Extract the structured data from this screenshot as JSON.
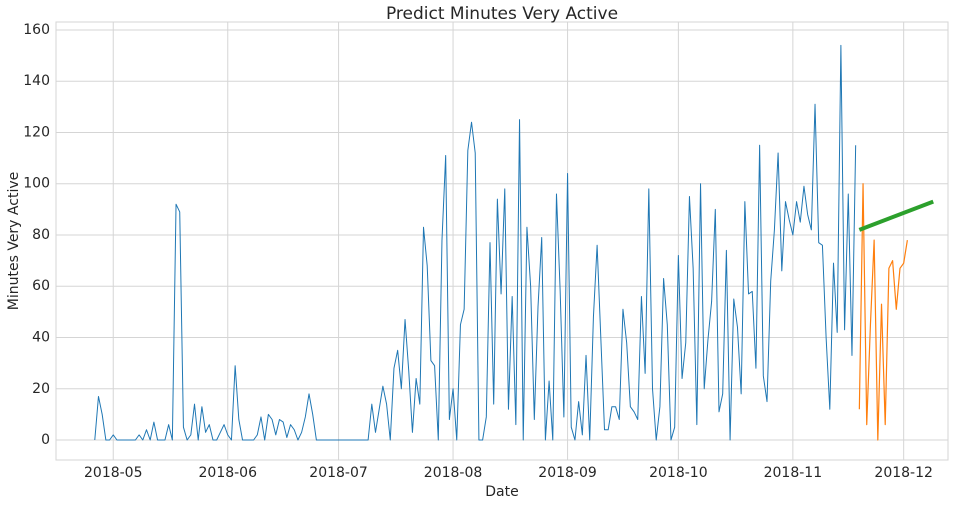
{
  "chart_data": {
    "type": "line",
    "title": "Predict Minutes Very Active",
    "x_label": "Date",
    "y_label": "Minutes Very Active",
    "grid": true,
    "xlim": [
      105.5,
      347
    ],
    "xticks": [
      {
        "value": 121,
        "label": "2018-05"
      },
      {
        "value": 152,
        "label": "2018-06"
      },
      {
        "value": 182,
        "label": "2018-07"
      },
      {
        "value": 213,
        "label": "2018-08"
      },
      {
        "value": 244,
        "label": "2018-09"
      },
      {
        "value": 274,
        "label": "2018-10"
      },
      {
        "value": 305,
        "label": "2018-11"
      },
      {
        "value": 335,
        "label": "2018-12"
      }
    ],
    "ylim": [
      -7.8,
      163.1
    ],
    "yticks": [
      0,
      20,
      40,
      60,
      80,
      100,
      120,
      140,
      160
    ],
    "series": [
      {
        "color": "#1f77b4",
        "width": 1,
        "x": [
          116,
          117,
          118,
          119,
          120,
          121,
          122,
          123,
          124,
          125,
          126,
          127,
          128,
          129,
          130,
          131,
          132,
          133,
          134,
          135,
          136,
          137,
          138,
          139,
          140,
          141,
          142,
          143,
          144,
          145,
          146,
          147,
          148,
          149,
          150,
          151,
          152,
          153,
          154,
          155,
          156,
          157,
          158,
          159,
          160,
          161,
          162,
          163,
          164,
          165,
          166,
          167,
          168,
          169,
          170,
          171,
          172,
          173,
          174,
          175,
          176,
          177,
          178,
          179,
          180,
          181,
          182,
          183,
          184,
          185,
          186,
          187,
          188,
          189,
          190,
          191,
          192,
          193,
          194,
          195,
          196,
          197,
          198,
          199,
          200,
          201,
          202,
          203,
          204,
          205,
          206,
          207,
          208,
          209,
          210,
          211,
          212,
          213,
          214,
          215,
          216,
          217,
          218,
          219,
          220,
          221,
          222,
          223,
          224,
          225,
          226,
          227,
          228,
          229,
          230,
          231,
          232,
          233,
          234,
          235,
          236,
          237,
          238,
          239,
          240,
          241,
          242,
          243,
          244,
          245,
          246,
          247,
          248,
          249,
          250,
          251,
          252,
          253,
          254,
          255,
          256,
          257,
          258,
          259,
          260,
          261,
          262,
          263,
          264,
          265,
          266,
          267,
          268,
          269,
          270,
          271,
          272,
          273,
          274,
          275,
          276,
          277,
          278,
          279,
          280,
          281,
          282,
          283,
          284,
          285,
          286,
          287,
          288,
          289,
          290,
          291,
          292,
          293,
          294,
          295,
          296,
          297,
          298,
          299,
          300,
          301,
          302,
          303,
          304,
          305,
          306,
          307,
          308,
          309,
          310,
          311,
          312,
          313,
          314,
          315,
          316,
          317,
          318,
          319,
          320,
          321,
          322
        ],
        "values": [
          0,
          17,
          10,
          0,
          0,
          2,
          0,
          0,
          0,
          0,
          0,
          0,
          2,
          0,
          4,
          0,
          7,
          0,
          0,
          0,
          6,
          0,
          92,
          89,
          5,
          0,
          2,
          14,
          0,
          13,
          3,
          6,
          0,
          0,
          3,
          6,
          2,
          0,
          29,
          8,
          0,
          0,
          0,
          0,
          2,
          9,
          0,
          10,
          8,
          2,
          8,
          7,
          1,
          6,
          4,
          0,
          3,
          9,
          18,
          10,
          0,
          0,
          0,
          0,
          0,
          0,
          0,
          0,
          0,
          0,
          0,
          0,
          0,
          0,
          0,
          14,
          3,
          12,
          21,
          14,
          0,
          28,
          35,
          20,
          47,
          27,
          3,
          24,
          14,
          83,
          68,
          31,
          29,
          0,
          78,
          111,
          8,
          20,
          0,
          45,
          51,
          113,
          124,
          112,
          0,
          0,
          9,
          77,
          14,
          94,
          57,
          98,
          12,
          56,
          6,
          125,
          0,
          83,
          60,
          8,
          52,
          79,
          0,
          23,
          0,
          96,
          58,
          9,
          104,
          5,
          0,
          15,
          2,
          33,
          0,
          48,
          76,
          40,
          4,
          4,
          13,
          13,
          8,
          51,
          38,
          13,
          11,
          8,
          56,
          26,
          98,
          20,
          0,
          13,
          63,
          45,
          0,
          5,
          72,
          24,
          38,
          95,
          67,
          6,
          100,
          20,
          39,
          54,
          90,
          11,
          18,
          74,
          0,
          55,
          44,
          18,
          93,
          57,
          58,
          28,
          115,
          25,
          15,
          62,
          82,
          112,
          66,
          93,
          86,
          80,
          93,
          85,
          99,
          88,
          82,
          131,
          77,
          76,
          40,
          12,
          69,
          42,
          154,
          43,
          96,
          33,
          115
        ]
      },
      {
        "color": "#ff7f0e",
        "width": 1.2,
        "x": [
          323,
          324,
          325,
          326,
          327,
          328,
          329,
          330,
          331,
          332,
          333,
          334,
          335,
          336
        ],
        "values": [
          12,
          100,
          6,
          45,
          78,
          0,
          53,
          6,
          67,
          70,
          51,
          67,
          69,
          78
        ]
      },
      {
        "color": "#2ca02c",
        "width": 4,
        "x": [
          323,
          343
        ],
        "values": [
          82,
          93
        ]
      }
    ]
  }
}
